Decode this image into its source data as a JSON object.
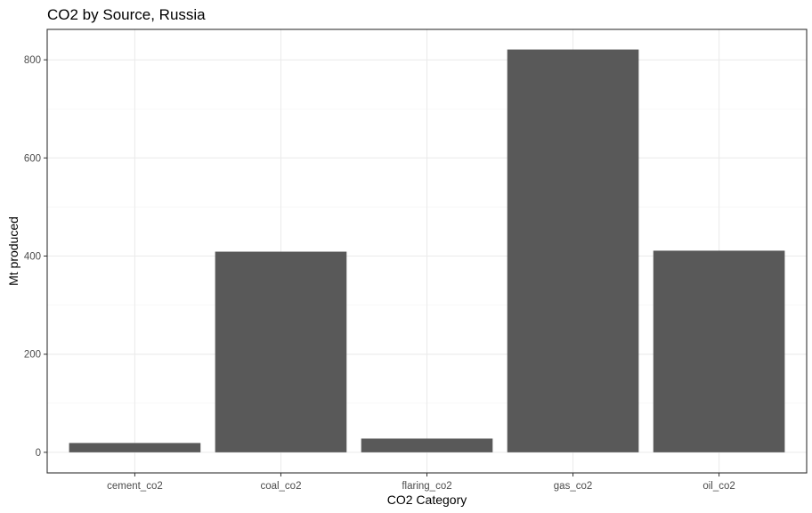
{
  "chart_data": {
    "type": "bar",
    "title": "CO2 by Source, Russia",
    "xlabel": "CO2 Category",
    "ylabel": "Mt produced",
    "categories": [
      "cement_co2",
      "coal_co2",
      "flaring_co2",
      "gas_co2",
      "oil_co2"
    ],
    "values": [
      19,
      409,
      28,
      821,
      411
    ],
    "ylim": [
      -42,
      862
    ],
    "yticks": [
      0,
      200,
      400,
      600,
      800
    ],
    "bar_color": "#595959",
    "grid": true,
    "legend": "none"
  }
}
